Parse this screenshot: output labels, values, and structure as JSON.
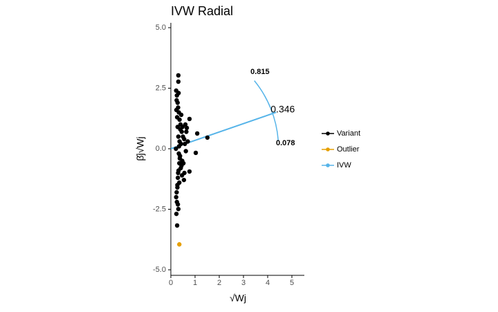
{
  "chart_data": {
    "type": "scatter",
    "title": "IVW Radial",
    "x_label": "√Wj",
    "y_label": "β̂j√Wj",
    "xlim": [
      0,
      5.5
    ],
    "xticks": [
      0,
      1,
      2,
      3,
      4,
      5
    ],
    "ylim": [
      -5.2,
      5.2
    ],
    "yticks": [
      {
        "value": 5,
        "label": "5.0"
      },
      2.5,
      {
        "value": 0,
        "label": "0.0"
      },
      -2.5,
      {
        "value": -5,
        "label": "-5.0"
      }
    ],
    "series": [
      {
        "name": "Variant",
        "color": "#000000",
        "x": [
          0.31,
          0.31,
          0.26,
          0.23,
          0.31,
          1.09,
          1.51,
          1.03,
          0.77,
          0.77,
          0.66,
          0.54,
          0.22,
          0.25,
          0.28,
          0.3,
          0.33,
          0.36,
          0.4,
          0.45,
          0.5,
          0.22,
          0.24,
          0.27,
          0.29,
          0.32,
          0.35,
          0.38,
          0.42,
          0.48,
          0.55,
          0.6,
          0.23,
          0.26,
          0.28,
          0.31,
          0.34,
          0.37,
          0.41,
          0.46,
          0.52,
          0.58,
          0.64,
          0.7,
          0.25,
          0.27,
          0.3,
          0.33,
          0.36,
          0.39,
          0.43,
          0.47,
          0.21,
          0.24,
          0.29,
          0.32,
          0.35,
          0.44,
          0.56,
          0.62
        ],
        "values": [
          3.03,
          2.77,
          -3.17,
          -2.69,
          -2.49,
          0.63,
          0.46,
          -0.17,
          -0.94,
          1.23,
          0.86,
          -1.29,
          2.4,
          2.2,
          1.9,
          1.7,
          1.5,
          1.2,
          1.0,
          0.7,
          0.5,
          -2.0,
          -1.8,
          -1.5,
          -1.2,
          -0.9,
          -0.6,
          -0.3,
          0.2,
          0.9,
          0.4,
          1.0,
          1.6,
          1.3,
          0.9,
          0.5,
          0.1,
          -0.4,
          -0.8,
          -1.1,
          -0.6,
          0.2,
          0.7,
          0.3,
          -2.2,
          -1.6,
          -1.0,
          -0.2,
          0.3,
          0.8,
          1.4,
          -0.5,
          0.0,
          2.0,
          -2.3,
          2.3,
          -1.4,
          -0.7,
          -1.0,
          -0.1
        ]
      },
      {
        "name": "Outlier",
        "color": "#E69F00",
        "x": [
          0.35
        ],
        "values": [
          -3.95
        ]
      }
    ],
    "ivw": {
      "name": "IVW",
      "color": "#56B4E9",
      "estimate": 0.346,
      "ci": [
        0.815,
        0.078
      ]
    }
  }
}
